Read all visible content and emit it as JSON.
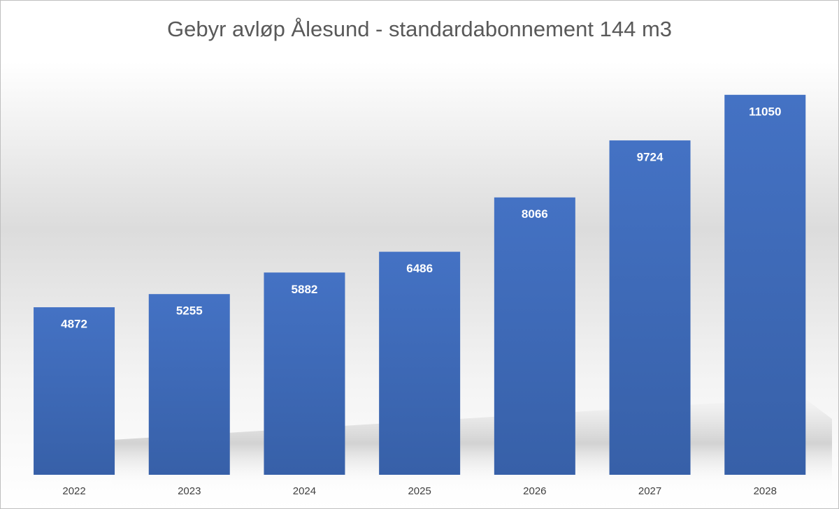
{
  "chart_data": {
    "type": "bar",
    "title": "Gebyr avløp Ålesund - standardabonnement 144 m3",
    "categories": [
      "2022",
      "2023",
      "2024",
      "2025",
      "2026",
      "2027",
      "2028"
    ],
    "values": [
      4872,
      5255,
      5882,
      6486,
      8066,
      9724,
      11050
    ],
    "color": "#4472c4"
  }
}
